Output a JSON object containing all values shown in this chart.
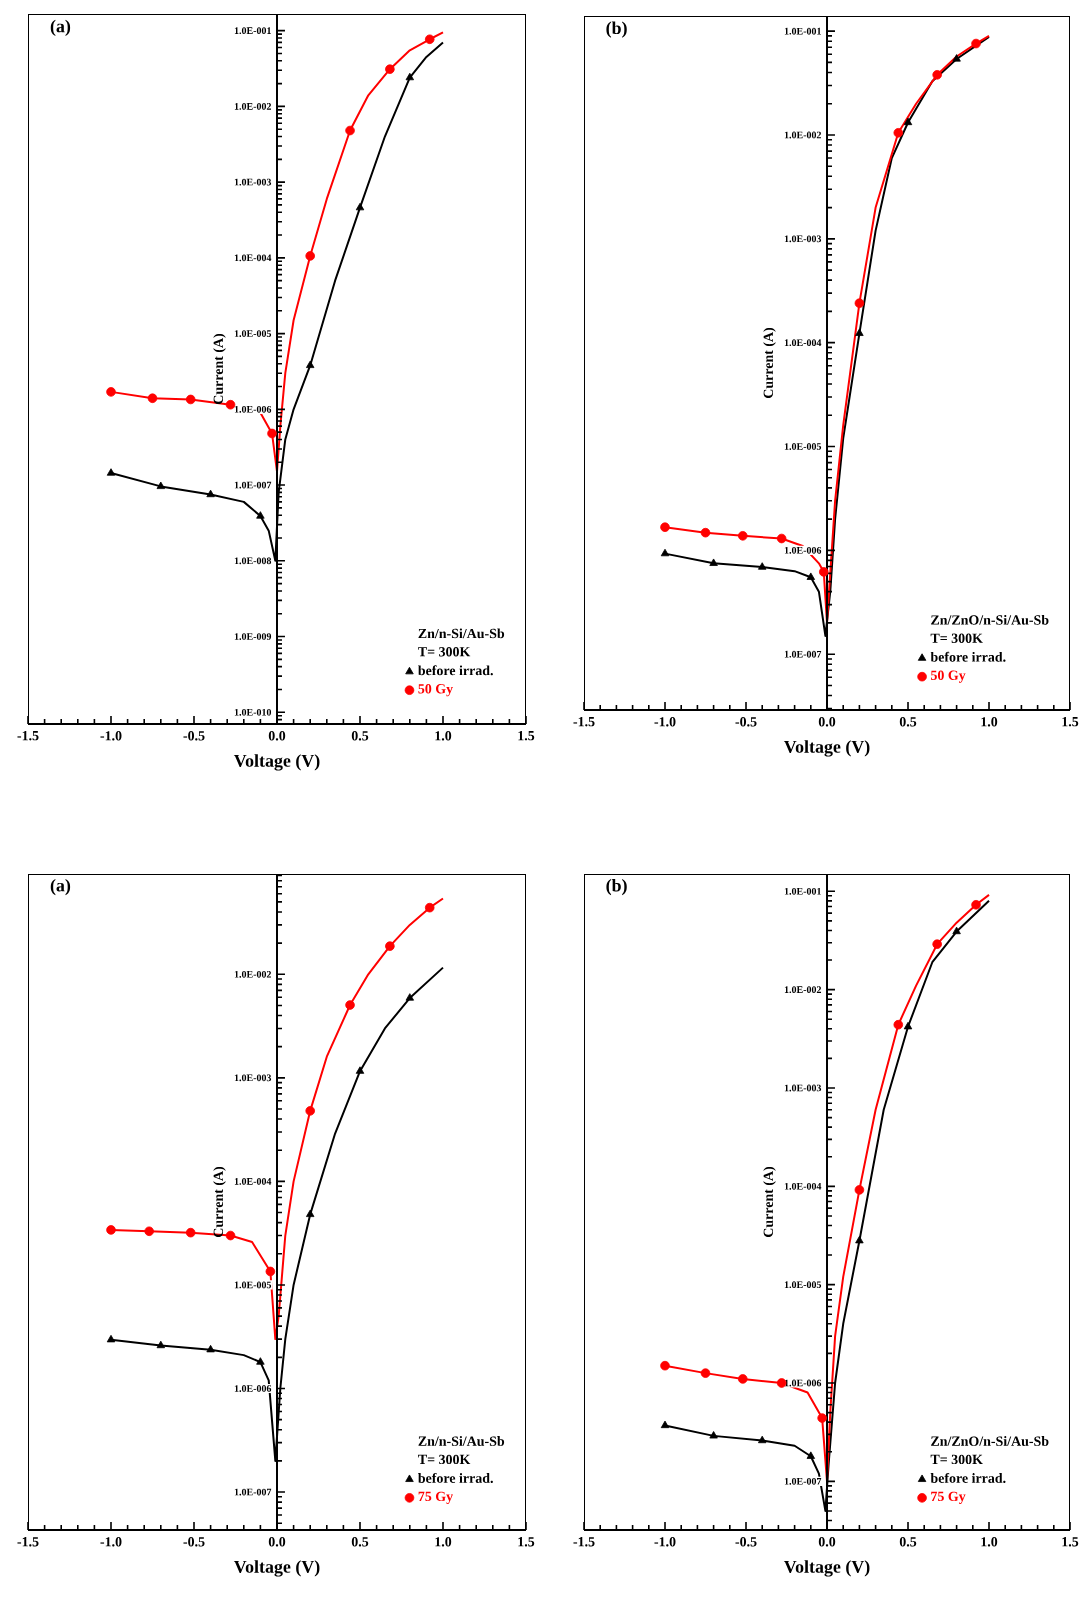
{
  "chart_data": [
    {
      "type": "line",
      "title": "(a)",
      "xlabel": "Voltage (V)",
      "ylabel": "Current (A)",
      "legend_title": "Zn/n-Si/Au-Sb",
      "annotations": [
        "T= 300K"
      ],
      "legend": "bottom right",
      "log": "y",
      "xlim": [
        -1.5,
        1.5
      ],
      "xticks": [
        -1.5,
        {
          "value": -1.0,
          "label": "-1.0"
        },
        -0.5,
        {
          "value": 0.0,
          "label": "0.0"
        },
        0.5,
        {
          "value": 1.0,
          "label": "1.0"
        },
        1.5
      ],
      "ylim": [
        7e-11,
        0.166
      ],
      "yticks": [
        {
          "value": 1e-10,
          "label": "1.0E-010"
        },
        {
          "value": 1e-09,
          "label": "1.0E-009"
        },
        {
          "value": 1e-08,
          "label": "1.0E-008"
        },
        {
          "value": 1e-07,
          "label": "1.0E-007"
        },
        {
          "value": 1e-06,
          "label": "1.0E-006"
        },
        {
          "value": 1e-05,
          "label": "1.0E-005"
        },
        {
          "value": 0.0001,
          "label": "1.0E-004"
        },
        {
          "value": 0.001,
          "label": "1.0E-003"
        },
        {
          "value": 0.01,
          "label": "1.0E-002"
        },
        {
          "value": 0.1,
          "label": "1.0E-001"
        }
      ],
      "series": [
        {
          "type": "line",
          "color": "#000000",
          "marker": "none",
          "x": [
            -1,
            -0.7,
            -0.4,
            -0.2,
            -0.1,
            -0.05,
            -0.01,
            0.01,
            0.05,
            0.1,
            0.2,
            0.35,
            0.5,
            0.65,
            0.8,
            0.9,
            1.0
          ],
          "values": [
            1.44e-07,
            9.6e-08,
            7.5e-08,
            6e-08,
            3.9e-08,
            2.5e-08,
            1e-08,
            8e-08,
            4e-07,
            1e-06,
            3.8e-06,
            5e-05,
            0.00046,
            0.004,
            0.024,
            0.045,
            0.07
          ]
        },
        {
          "type": "line",
          "color": "#ff0000",
          "marker": "none",
          "x": [
            -1,
            -0.75,
            -0.52,
            -0.28,
            -0.1,
            -0.03,
            0,
            0.02,
            0.05,
            0.1,
            0.2,
            0.3,
            0.44,
            0.55,
            0.68,
            0.8,
            0.92,
            1.0
          ],
          "values": [
            1.7e-06,
            1.4e-06,
            1.35e-06,
            1.15e-06,
            9e-07,
            4.8e-07,
            1.5e-07,
            6e-07,
            3e-06,
            1.5e-05,
            0.000106,
            0.0006,
            0.0048,
            0.014,
            0.031,
            0.055,
            0.077,
            0.095
          ]
        },
        {
          "type": "scatter",
          "name": "before irrad.",
          "color": "#000000",
          "marker": "triangle",
          "x": [
            -1.0,
            -0.7,
            -0.4,
            -0.1,
            0.2,
            0.5,
            0.8
          ],
          "values": [
            1.44e-07,
            9.6e-08,
            7.5e-08,
            3.9e-08,
            3.8e-06,
            0.00046,
            0.024
          ]
        },
        {
          "type": "scatter",
          "name": "50 Gy",
          "color": "#ff0000",
          "marker": "circle",
          "x": [
            -1.0,
            -0.75,
            -0.52,
            -0.28,
            -0.03,
            0.2,
            0.44,
            0.68,
            0.92
          ],
          "values": [
            1.7e-06,
            1.4e-06,
            1.35e-06,
            1.15e-06,
            4.8e-07,
            0.000106,
            0.0048,
            0.031,
            0.077
          ]
        }
      ]
    },
    {
      "type": "line",
      "title": "(b)",
      "xlabel": "Voltage (V)",
      "ylabel": "Current (A)",
      "legend_title": "Zn/ZnO/n-Si/Au-Sb",
      "annotations": [
        "T= 300K"
      ],
      "legend": "bottom right",
      "log": "y",
      "xlim": [
        -1.5,
        1.5
      ],
      "xticks": [
        -1.5,
        {
          "value": -1.0,
          "label": "-1.0"
        },
        -0.5,
        {
          "value": 0.0,
          "label": "0.0"
        },
        0.5,
        {
          "value": 1.0,
          "label": "1.0"
        },
        1.5
      ],
      "ylim": [
        2.9e-08,
        0.14
      ],
      "yticks": [
        {
          "value": 1e-07,
          "label": "1.0E-007"
        },
        {
          "value": 1e-06,
          "label": "1.0E-006"
        },
        {
          "value": 1e-05,
          "label": "1.0E-005"
        },
        {
          "value": 0.0001,
          "label": "1.0E-004"
        },
        {
          "value": 0.001,
          "label": "1.0E-003"
        },
        {
          "value": 0.01,
          "label": "1.0E-002"
        },
        {
          "value": 0.1,
          "label": "1.0E-001"
        }
      ],
      "series": [
        {
          "type": "line",
          "color": "#000000",
          "marker": "none",
          "x": [
            -1,
            -0.7,
            -0.4,
            -0.2,
            -0.1,
            -0.05,
            -0.01,
            0.02,
            0.05,
            0.1,
            0.2,
            0.3,
            0.4,
            0.5,
            0.65,
            0.8,
            1.0
          ],
          "values": [
            9.3e-07,
            7.5e-07,
            6.9e-07,
            6.3e-07,
            5.5e-07,
            4e-07,
            1.5e-07,
            4e-07,
            2e-06,
            1.2e-05,
            0.000123,
            0.0012,
            0.006,
            0.0132,
            0.033,
            0.054,
            0.088
          ]
        },
        {
          "type": "line",
          "color": "#ff0000",
          "marker": "none",
          "x": [
            -1,
            -0.75,
            -0.52,
            -0.28,
            -0.15,
            -0.05,
            -0.02,
            0,
            0.02,
            0.05,
            0.1,
            0.2,
            0.3,
            0.44,
            0.55,
            0.68,
            0.8,
            0.92,
            1.0
          ],
          "values": [
            1.67e-06,
            1.48e-06,
            1.38e-06,
            1.3e-06,
            1.1e-06,
            7.5e-07,
            6.2e-07,
            2e-07,
            6e-07,
            3e-06,
            1.6e-05,
            0.00024,
            0.002,
            0.0105,
            0.02,
            0.038,
            0.057,
            0.076,
            0.09
          ]
        },
        {
          "type": "scatter",
          "name": "before irrad.",
          "color": "#000000",
          "marker": "triangle",
          "x": [
            -1.0,
            -0.7,
            -0.4,
            -0.1,
            0.2,
            0.5,
            0.8
          ],
          "values": [
            9.3e-07,
            7.5e-07,
            6.9e-07,
            5.5e-07,
            0.000123,
            0.0132,
            0.054
          ]
        },
        {
          "type": "scatter",
          "name": "50 Gy",
          "color": "#ff0000",
          "marker": "circle",
          "x": [
            -1.0,
            -0.75,
            -0.52,
            -0.28,
            -0.02,
            0.2,
            0.44,
            0.68,
            0.92
          ],
          "values": [
            1.67e-06,
            1.48e-06,
            1.38e-06,
            1.3e-06,
            6.2e-07,
            0.00024,
            0.0105,
            0.038,
            0.076
          ]
        }
      ]
    },
    {
      "type": "line",
      "title": "(a)",
      "xlabel": "Voltage (V)",
      "ylabel": "Current (A)",
      "legend_title": "Zn/n-Si/Au-Sb",
      "annotations": [
        "T= 300K"
      ],
      "legend": "bottom right",
      "log": "y",
      "xlim": [
        -1.5,
        1.5
      ],
      "xticks": [
        -1.5,
        {
          "value": -1.0,
          "label": "-1.0"
        },
        -0.5,
        {
          "value": 0.0,
          "label": "0.0"
        },
        0.5,
        {
          "value": 1.0,
          "label": "1.0"
        },
        1.5
      ],
      "ylim": [
        4.3e-08,
        0.093
      ],
      "yticks": [
        {
          "value": 1e-07,
          "label": "1.0E-007"
        },
        {
          "value": 1e-06,
          "label": "1.0E-006"
        },
        {
          "value": 1e-05,
          "label": "1.0E-005"
        },
        {
          "value": 0.0001,
          "label": "1.0E-004"
        },
        {
          "value": 0.001,
          "label": "1.0E-003"
        },
        {
          "value": 0.01,
          "label": "1.0E-002"
        }
      ],
      "series": [
        {
          "type": "line",
          "color": "#000000",
          "marker": "none",
          "x": [
            -1,
            -0.7,
            -0.4,
            -0.2,
            -0.1,
            -0.05,
            -0.01,
            0.02,
            0.05,
            0.1,
            0.2,
            0.35,
            0.5,
            0.65,
            0.8,
            1.0
          ],
          "values": [
            2.96e-06,
            2.6e-06,
            2.37e-06,
            2.1e-06,
            1.8e-06,
            1.2e-06,
            2e-07,
            1e-06,
            3e-06,
            1e-05,
            4.8e-05,
            0.00029,
            0.00116,
            0.003,
            0.0059,
            0.0116
          ]
        },
        {
          "type": "line",
          "color": "#ff0000",
          "marker": "none",
          "x": [
            -1,
            -0.77,
            -0.52,
            -0.28,
            -0.15,
            -0.04,
            -0.01,
            0.01,
            0.05,
            0.1,
            0.2,
            0.3,
            0.44,
            0.55,
            0.68,
            0.8,
            0.92,
            1.0
          ],
          "values": [
            3.4e-05,
            3.3e-05,
            3.2e-05,
            3e-05,
            2.6e-05,
            1.35e-05,
            3e-06,
            5e-06,
            3e-05,
            0.0001,
            0.00048,
            0.0016,
            0.00505,
            0.01,
            0.0187,
            0.03,
            0.044,
            0.054
          ]
        },
        {
          "type": "scatter",
          "name": "before irrad.",
          "color": "#000000",
          "marker": "triangle",
          "x": [
            -1.0,
            -0.7,
            -0.4,
            -0.1,
            0.2,
            0.5,
            0.8
          ],
          "values": [
            2.96e-06,
            2.6e-06,
            2.37e-06,
            1.8e-06,
            4.8e-05,
            0.00116,
            0.0059
          ]
        },
        {
          "type": "scatter",
          "name": "75 Gy",
          "color": "#ff0000",
          "marker": "circle",
          "x": [
            -1.0,
            -0.77,
            -0.52,
            -0.28,
            -0.04,
            0.2,
            0.44,
            0.68,
            0.92
          ],
          "values": [
            3.4e-05,
            3.3e-05,
            3.2e-05,
            3e-05,
            1.35e-05,
            0.00048,
            0.00505,
            0.0187,
            0.044
          ]
        }
      ]
    },
    {
      "type": "line",
      "title": "(b)",
      "xlabel": "Voltage (V)",
      "ylabel": "Current (A)",
      "legend_title": "Zn/ZnO/n-Si/Au-Sb",
      "annotations": [
        "T= 300K"
      ],
      "legend": "bottom right",
      "log": "y",
      "xlim": [
        -1.5,
        1.5
      ],
      "xticks": [
        -1.5,
        {
          "value": -1.0,
          "label": "-1.0"
        },
        -0.5,
        {
          "value": 0.0,
          "label": "0.0"
        },
        0.5,
        {
          "value": 1.0,
          "label": "1.0"
        },
        1.5
      ],
      "ylim": [
        3.2e-08,
        0.15
      ],
      "yticks": [
        {
          "value": 1e-07,
          "label": "1.0E-007"
        },
        {
          "value": 1e-06,
          "label": "1.0E-006"
        },
        {
          "value": 1e-05,
          "label": "1.0E-005"
        },
        {
          "value": 0.0001,
          "label": "1.0E-004"
        },
        {
          "value": 0.001,
          "label": "1.0E-003"
        },
        {
          "value": 0.01,
          "label": "1.0E-002"
        },
        {
          "value": 0.1,
          "label": "1.0E-001"
        }
      ],
      "series": [
        {
          "type": "line",
          "color": "#000000",
          "marker": "none",
          "x": [
            -1,
            -0.7,
            -0.4,
            -0.2,
            -0.1,
            -0.05,
            -0.01,
            0.01,
            0.05,
            0.1,
            0.2,
            0.35,
            0.5,
            0.65,
            0.8,
            1.0
          ],
          "values": [
            3.7e-07,
            2.9e-07,
            2.6e-07,
            2.3e-07,
            1.8e-07,
            1.2e-07,
            5e-08,
            1.5e-07,
            1e-06,
            4e-06,
            2.8e-05,
            0.0006,
            0.0042,
            0.019,
            0.039,
            0.08
          ]
        },
        {
          "type": "line",
          "color": "#ff0000",
          "marker": "none",
          "x": [
            -1,
            -0.75,
            -0.52,
            -0.28,
            -0.12,
            -0.03,
            0,
            0.02,
            0.05,
            0.1,
            0.2,
            0.3,
            0.44,
            0.55,
            0.68,
            0.8,
            0.92,
            1.0
          ],
          "values": [
            1.5e-06,
            1.26e-06,
            1.1e-06,
            1e-06,
            8e-07,
            4.4e-07,
            1e-07,
            5e-07,
            3e-06,
            1.2e-05,
            9.2e-05,
            0.0006,
            0.0044,
            0.011,
            0.029,
            0.048,
            0.073,
            0.092
          ]
        },
        {
          "type": "scatter",
          "name": "before irrad.",
          "color": "#000000",
          "marker": "triangle",
          "x": [
            -1.0,
            -0.7,
            -0.4,
            -0.1,
            0.2,
            0.5,
            0.8
          ],
          "values": [
            3.7e-07,
            2.9e-07,
            2.6e-07,
            1.8e-07,
            2.8e-05,
            0.0042,
            0.039
          ]
        },
        {
          "type": "scatter",
          "name": "75 Gy",
          "color": "#ff0000",
          "marker": "circle",
          "x": [
            -1.0,
            -0.75,
            -0.52,
            -0.28,
            -0.03,
            0.2,
            0.44,
            0.68,
            0.92
          ],
          "values": [
            1.5e-06,
            1.26e-06,
            1.1e-06,
            1e-06,
            4.4e-07,
            9.2e-05,
            0.0044,
            0.029,
            0.073
          ]
        }
      ]
    }
  ]
}
